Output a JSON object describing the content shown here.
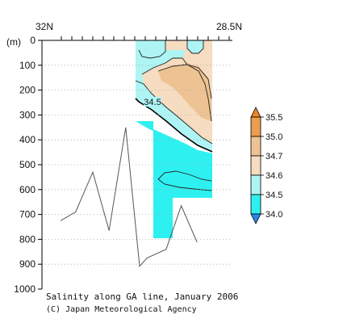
{
  "chart_data": {
    "type": "heatmap",
    "title": "Salinity along GA line, January 2006",
    "credit": "(C) Japan Meteorological Agency",
    "x_axis": {
      "left_label": "32N",
      "right_label": "28.5N",
      "minor_tick_count": 17
    },
    "y_axis": {
      "label": "(m)",
      "ylim": [
        0,
        1000
      ],
      "inverted": true,
      "ticks": [
        0,
        100,
        200,
        300,
        400,
        500,
        600,
        700,
        800,
        900,
        1000
      ]
    },
    "grid": "dotted-horizontal",
    "colorbar": {
      "levels": [
        34.0,
        34.5,
        34.6,
        34.7,
        35.0,
        35.5
      ],
      "labels": [
        "34.0",
        "34.5",
        "34.6",
        "34.7",
        "35.0",
        "35.5"
      ],
      "colors": {
        "below_34_0": "#2b86e8",
        "band_34_0_34_5": "#2ef0f0",
        "band_34_5_34_6": "#aef4f4",
        "band_34_6_34_7": "#f6dcc0",
        "band_34_7_35_0": "#eec393",
        "band_35_0_35_5": "#ea9e4f",
        "above_35_5": "#ec8628"
      }
    },
    "contour_label": "34.5",
    "bottom_profile": {
      "x_frac": [
        0.0,
        0.1,
        0.214,
        0.322,
        0.432,
        0.524,
        0.573,
        0.7,
        0.8,
        0.905
      ],
      "depth_m": [
        725,
        690,
        530,
        765,
        350,
        908,
        875,
        840,
        665,
        812
      ]
    }
  }
}
